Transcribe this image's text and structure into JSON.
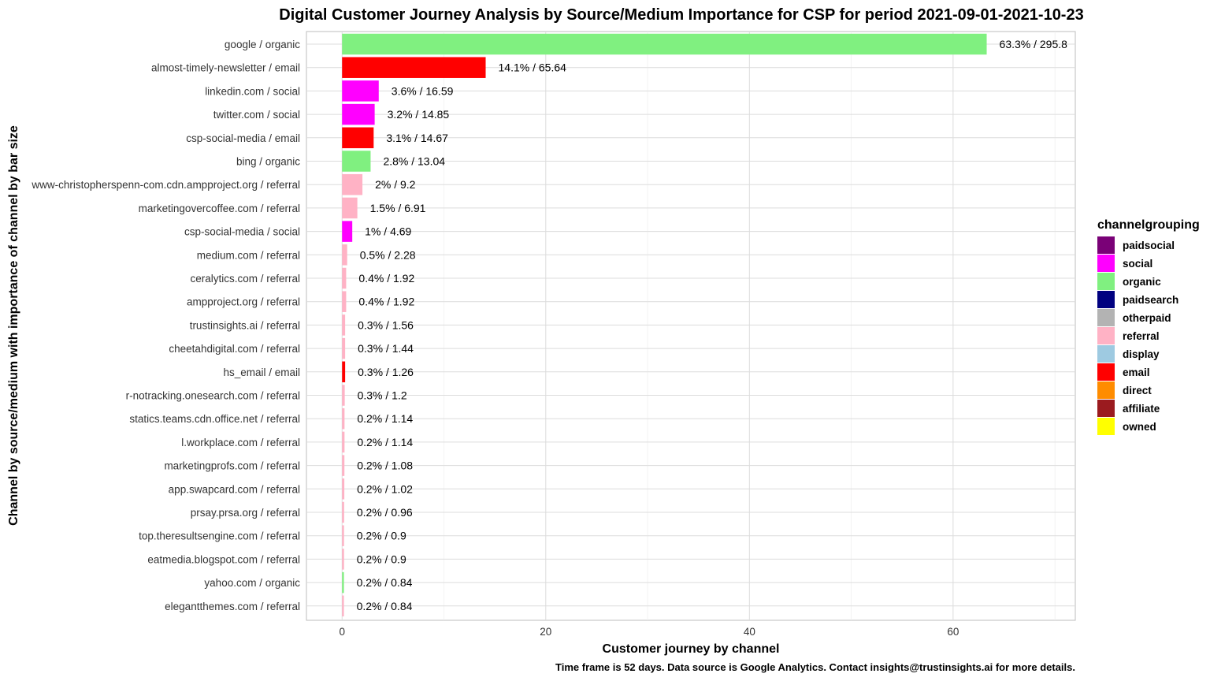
{
  "chart_data": {
    "type": "bar",
    "orientation": "horizontal",
    "title": "Digital Customer Journey Analysis by Source/Medium Importance for CSP for period 2021-09-01-2021-10-23",
    "xlabel": "Customer journey by channel",
    "ylabel": "Channel by source/medium with importance of channel by bar size",
    "caption": "Time frame is 52 days. Data source is Google Analytics. Contact insights@trustinsights.ai for more details.",
    "xlim": [
      -3.5,
      72
    ],
    "xticks": [
      0,
      20,
      40,
      60
    ],
    "xtick_labels": [
      "0",
      "20",
      "40",
      "60"
    ],
    "grid": true,
    "legend_position": "right",
    "legend_title": "channelgrouping",
    "legend": [
      {
        "name": "paidsocial",
        "color": "#7a0177"
      },
      {
        "name": "social",
        "color": "#ff00ff"
      },
      {
        "name": "organic",
        "color": "#80f080"
      },
      {
        "name": "paidsearch",
        "color": "#000080"
      },
      {
        "name": "otherpaid",
        "color": "#b3b3b3"
      },
      {
        "name": "referral",
        "color": "#ffb2c5"
      },
      {
        "name": "display",
        "color": "#9ecae1"
      },
      {
        "name": "email",
        "color": "#ff0000"
      },
      {
        "name": "direct",
        "color": "#ff8c00"
      },
      {
        "name": "affiliate",
        "color": "#9b1b1f"
      },
      {
        "name": "owned",
        "color": "#ffff00"
      }
    ],
    "bars": [
      {
        "category": "google / organic",
        "channel": "organic",
        "value": 63.3,
        "label": "63.3% / 295.8"
      },
      {
        "category": "almost-timely-newsletter / email",
        "channel": "email",
        "value": 14.1,
        "label": "14.1% / 65.64"
      },
      {
        "category": "linkedin.com / social",
        "channel": "social",
        "value": 3.6,
        "label": "3.6% / 16.59"
      },
      {
        "category": "twitter.com / social",
        "channel": "social",
        "value": 3.2,
        "label": "3.2% / 14.85"
      },
      {
        "category": "csp-social-media / email",
        "channel": "email",
        "value": 3.1,
        "label": "3.1% / 14.67"
      },
      {
        "category": "bing / organic",
        "channel": "organic",
        "value": 2.8,
        "label": "2.8% / 13.04"
      },
      {
        "category": "www-christopherspenn-com.cdn.ampproject.org / referral",
        "channel": "referral",
        "value": 2.0,
        "label": "2% / 9.2"
      },
      {
        "category": "marketingovercoffee.com / referral",
        "channel": "referral",
        "value": 1.5,
        "label": "1.5% / 6.91"
      },
      {
        "category": "csp-social-media / social",
        "channel": "social",
        "value": 1.0,
        "label": "1% / 4.69"
      },
      {
        "category": "medium.com / referral",
        "channel": "referral",
        "value": 0.5,
        "label": "0.5% / 2.28"
      },
      {
        "category": "ceralytics.com / referral",
        "channel": "referral",
        "value": 0.4,
        "label": "0.4% / 1.92"
      },
      {
        "category": "ampproject.org / referral",
        "channel": "referral",
        "value": 0.4,
        "label": "0.4% / 1.92"
      },
      {
        "category": "trustinsights.ai / referral",
        "channel": "referral",
        "value": 0.3,
        "label": "0.3% / 1.56"
      },
      {
        "category": "cheetahdigital.com / referral",
        "channel": "referral",
        "value": 0.3,
        "label": "0.3% / 1.44"
      },
      {
        "category": "hs_email / email",
        "channel": "email",
        "value": 0.3,
        "label": "0.3% / 1.26"
      },
      {
        "category": "r-notracking.onesearch.com / referral",
        "channel": "referral",
        "value": 0.26,
        "label": "0.3% / 1.2"
      },
      {
        "category": "statics.teams.cdn.office.net / referral",
        "channel": "referral",
        "value": 0.24,
        "label": "0.2% / 1.14"
      },
      {
        "category": "l.workplace.com / referral",
        "channel": "referral",
        "value": 0.24,
        "label": "0.2% / 1.14"
      },
      {
        "category": "marketingprofs.com / referral",
        "channel": "referral",
        "value": 0.23,
        "label": "0.2% / 1.08"
      },
      {
        "category": "app.swapcard.com / referral",
        "channel": "referral",
        "value": 0.22,
        "label": "0.2% / 1.02"
      },
      {
        "category": "prsay.prsa.org / referral",
        "channel": "referral",
        "value": 0.2,
        "label": "0.2% / 0.96"
      },
      {
        "category": "top.theresultsengine.com / referral",
        "channel": "referral",
        "value": 0.19,
        "label": "0.2% / 0.9"
      },
      {
        "category": "eatmedia.blogspot.com / referral",
        "channel": "referral",
        "value": 0.19,
        "label": "0.2% / 0.9"
      },
      {
        "category": "yahoo.com / organic",
        "channel": "organic",
        "value": 0.18,
        "label": "0.2% / 0.84"
      },
      {
        "category": "elegantthemes.com / referral",
        "channel": "referral",
        "value": 0.18,
        "label": "0.2% / 0.84"
      }
    ]
  }
}
